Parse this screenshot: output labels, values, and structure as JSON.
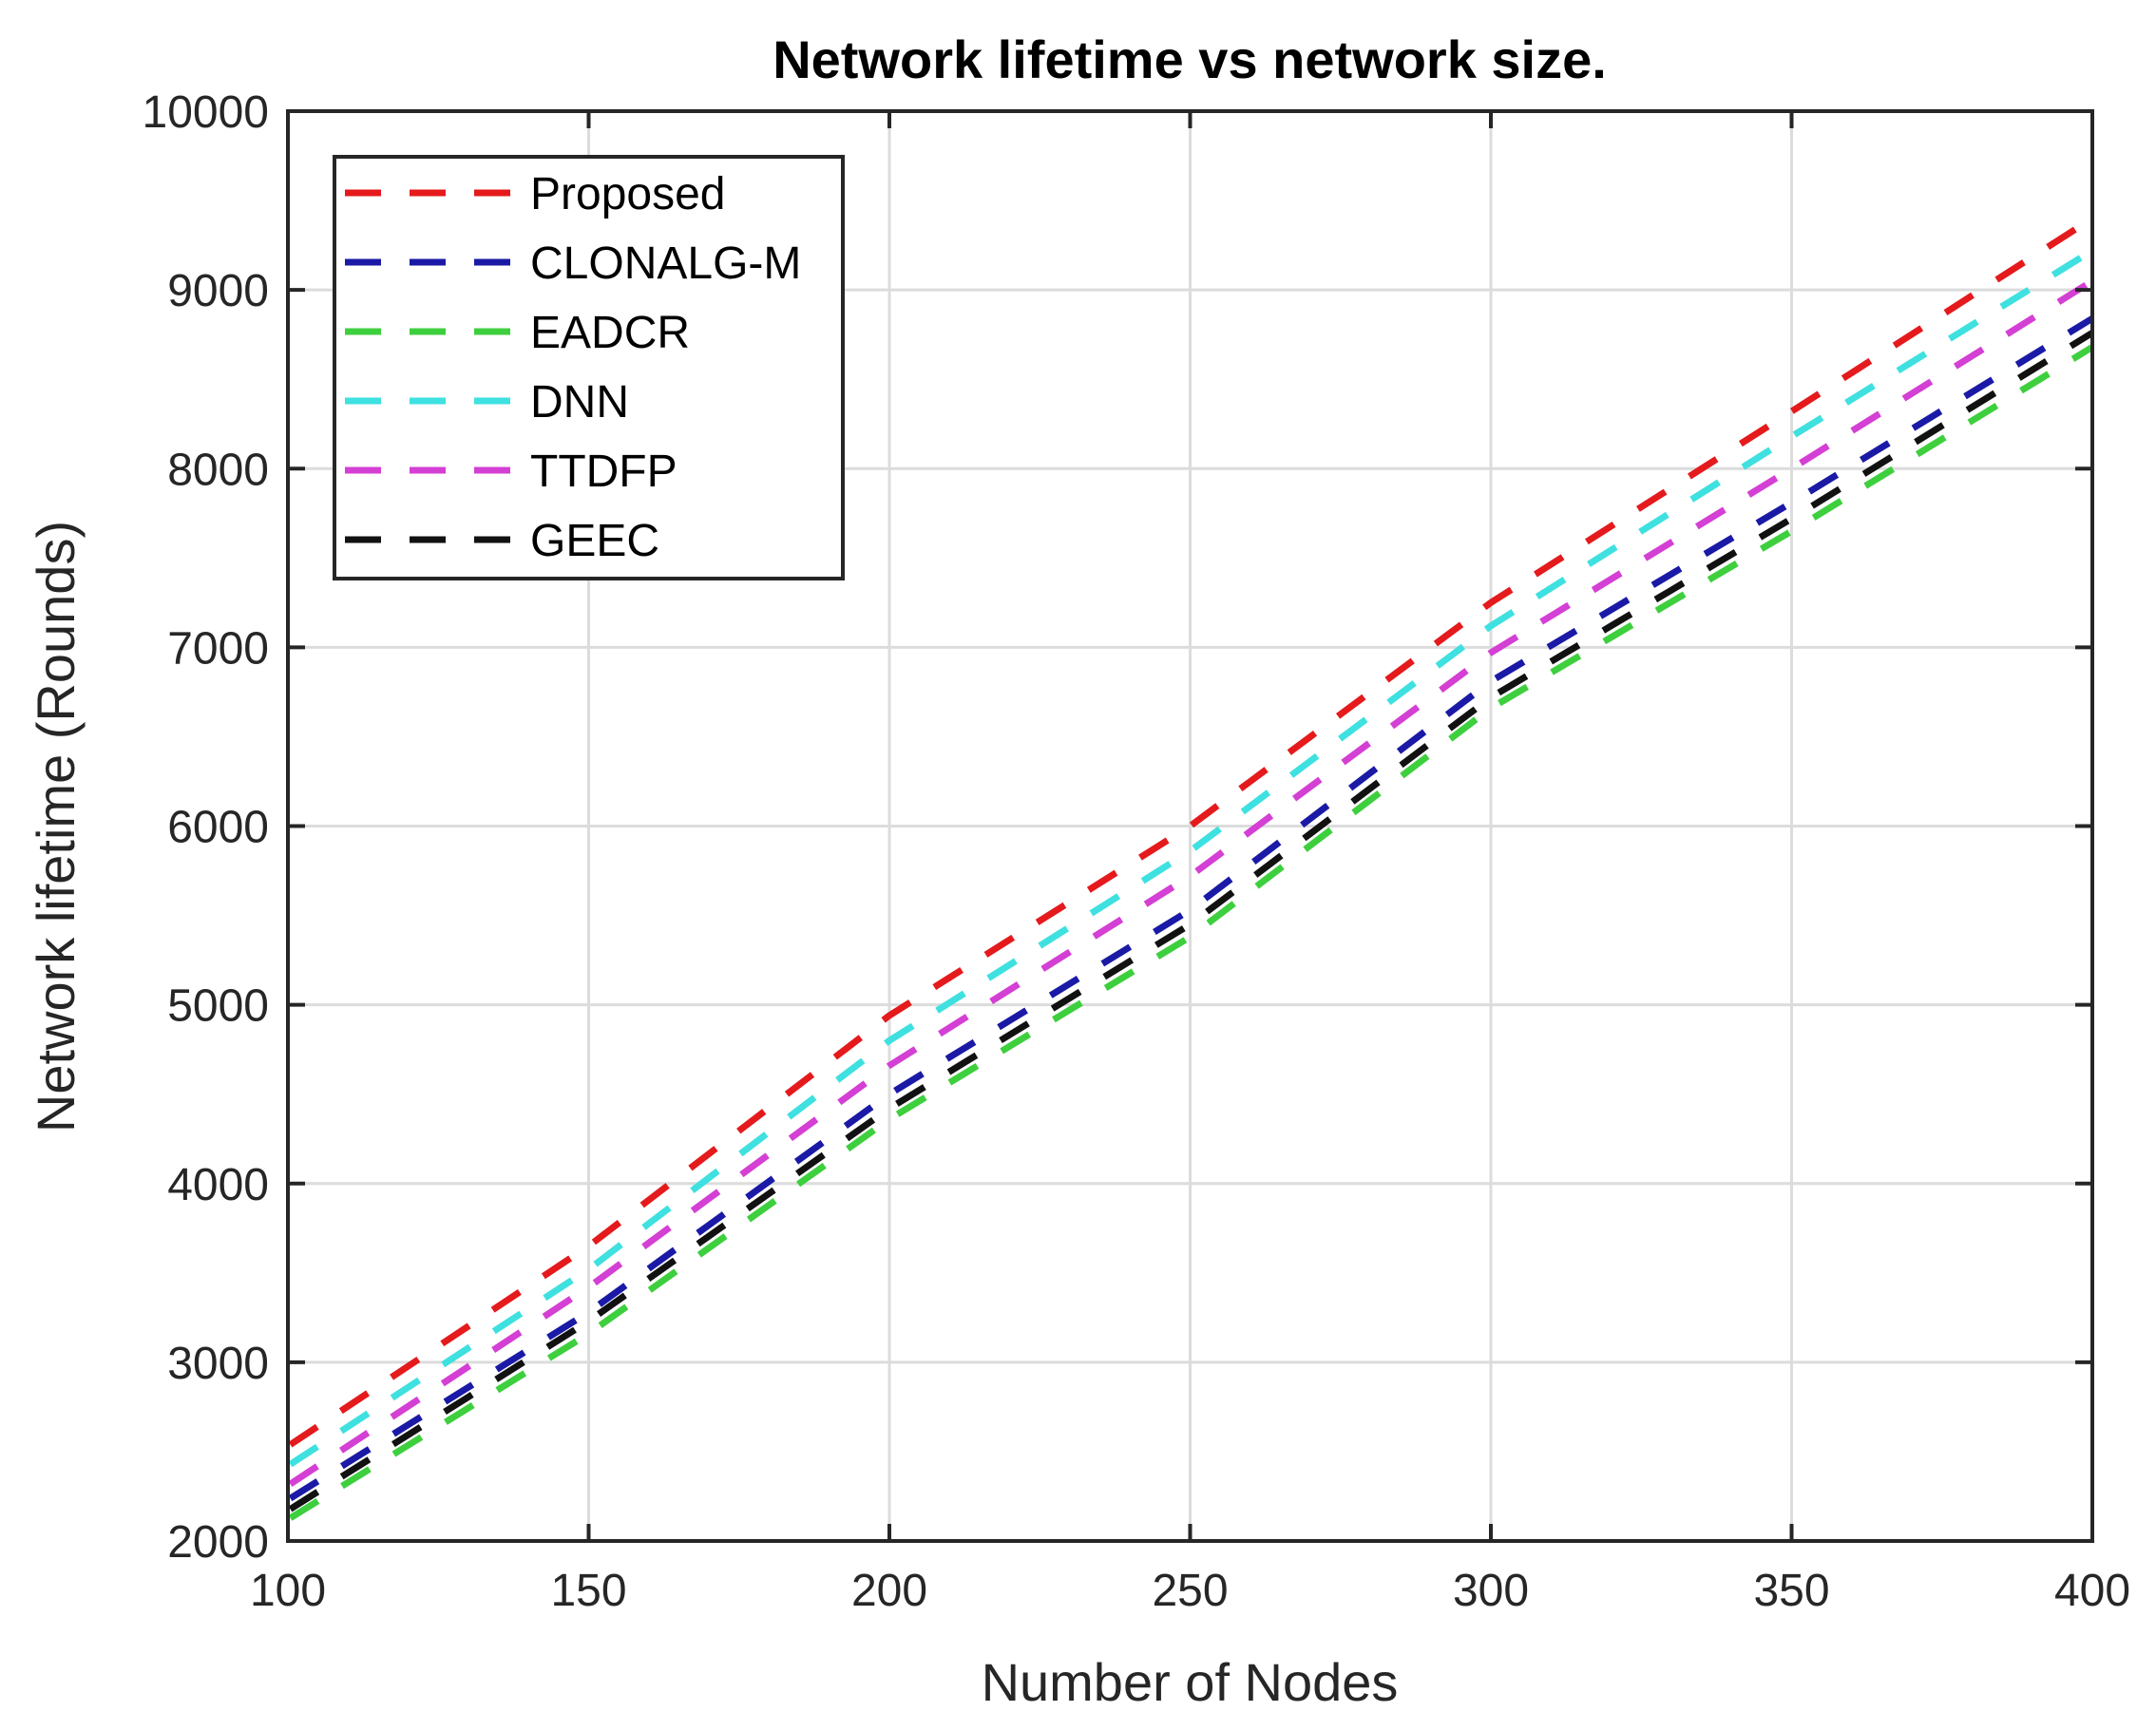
{
  "chart_data": {
    "type": "line",
    "title": "Network lifetime vs network size.",
    "xlabel": "Number of Nodes",
    "ylabel": "Network lifetime (Rounds)",
    "xlim": [
      100,
      400
    ],
    "ylim": [
      2000,
      10000
    ],
    "xticks": [
      100,
      150,
      200,
      250,
      300,
      350,
      400
    ],
    "yticks": [
      2000,
      3000,
      4000,
      5000,
      6000,
      7000,
      8000,
      9000,
      10000
    ],
    "grid": true,
    "legend_position": "upper left",
    "line_style": "dashed",
    "x": [
      100,
      110,
      120,
      130,
      140,
      150,
      160,
      170,
      180,
      190,
      200,
      210,
      220,
      230,
      240,
      250,
      260,
      270,
      280,
      290,
      300,
      310,
      320,
      330,
      340,
      350,
      360,
      370,
      380,
      390,
      400
    ],
    "anchor_x": [
      100,
      150,
      200,
      250,
      300,
      350,
      400
    ],
    "series": [
      {
        "name": "Proposed",
        "color": "#e41a1c",
        "anchors": [
          2530,
          3650,
          4940,
          6000,
          7250,
          8320,
          9400
        ]
      },
      {
        "name": "CLONALG-M",
        "color": "#1a1aa6",
        "anchors": [
          2230,
          3280,
          4500,
          5530,
          6810,
          7810,
          8840
        ]
      },
      {
        "name": "EADCR",
        "color": "#3ecf3e",
        "anchors": [
          2120,
          3160,
          4360,
          5380,
          6660,
          7650,
          8680
        ]
      },
      {
        "name": "DNN",
        "color": "#3fe0e0",
        "anchors": [
          2420,
          3520,
          4800,
          5860,
          7120,
          8180,
          9220
        ]
      },
      {
        "name": "TTDFP",
        "color": "#d43fd4",
        "anchors": [
          2310,
          3420,
          4660,
          5720,
          6970,
          8000,
          9050
        ]
      },
      {
        "name": "GEEC",
        "color": "#111111",
        "anchors": [
          2170,
          3230,
          4420,
          5450,
          6720,
          7720,
          8760
        ]
      }
    ]
  }
}
